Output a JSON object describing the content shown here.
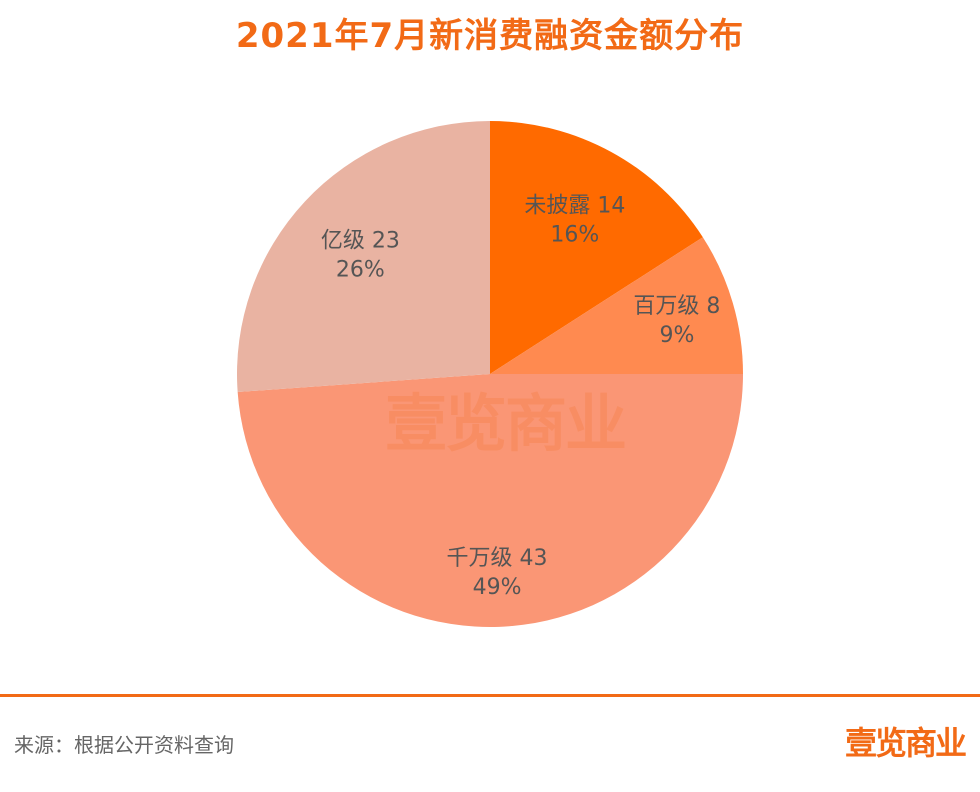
{
  "chart_data": {
    "type": "pie",
    "title": "2021年7月新消费融资金额分布",
    "slices": [
      {
        "name": "未披露",
        "value": 14,
        "percent": "16%",
        "color": "#ff6a00"
      },
      {
        "name": "百万级",
        "value": 8,
        "percent": "9%",
        "color": "#ff8a50"
      },
      {
        "name": "千万级",
        "value": 43,
        "percent": "49%",
        "color": "#fa9675"
      },
      {
        "name": "亿级",
        "value": 23,
        "percent": "26%",
        "color": "#e9b3a2"
      }
    ]
  },
  "footer": {
    "source": "来源：根据公开资料查询",
    "brand": "壹览商业"
  },
  "watermark": "壹览商业"
}
